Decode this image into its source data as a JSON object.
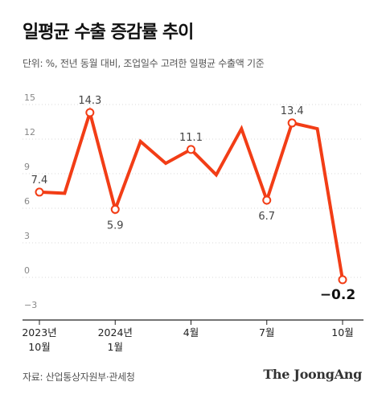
{
  "header": {
    "title": "일평균 수출 증감률 추이",
    "subtitle": "단위: %, 전년 동월 대비, 조업일수 고려한 일평균 수출액 기준"
  },
  "footer": {
    "source": "자료: 산업통상자원부·관세청",
    "logo": "The JoongAng"
  },
  "colors": {
    "line": "#f23d16",
    "grid": "#d9d9d9",
    "axis": "#222222",
    "label": "#444444"
  },
  "chart_data": {
    "type": "line",
    "title": "일평균 수출 증감률 추이",
    "ylim": [
      -3,
      15
    ],
    "yticks": [
      "15",
      "12",
      "9",
      "6",
      "3",
      "0",
      "−3"
    ],
    "yticks_values": [
      15,
      12,
      9,
      6,
      3,
      0,
      -3
    ],
    "x_tick_labels": [
      {
        "index": 0,
        "line1": "2023년",
        "line2": "10월"
      },
      {
        "index": 3,
        "line1": "2024년",
        "line2": "1월"
      },
      {
        "index": 6,
        "line1": "4월",
        "line2": ""
      },
      {
        "index": 9,
        "line1": "7월",
        "line2": ""
      },
      {
        "index": 12,
        "line1": "10월",
        "line2": ""
      }
    ],
    "series": [
      {
        "values": [
          7.4,
          7.3,
          14.3,
          5.9,
          11.8,
          9.9,
          11.1,
          8.9,
          12.9,
          6.7,
          13.4,
          12.9,
          -0.2
        ]
      }
    ],
    "annotations": [
      {
        "index": 0,
        "label": "7.4",
        "pos": "above"
      },
      {
        "index": 2,
        "label": "14.3",
        "pos": "above"
      },
      {
        "index": 3,
        "label": "5.9",
        "pos": "below"
      },
      {
        "index": 6,
        "label": "11.1",
        "pos": "above"
      },
      {
        "index": 9,
        "label": "6.7",
        "pos": "below"
      },
      {
        "index": 10,
        "label": "13.4",
        "pos": "above"
      },
      {
        "index": 12,
        "label": "−0.2",
        "pos": "below",
        "emphasis": true
      }
    ],
    "grid": true
  }
}
